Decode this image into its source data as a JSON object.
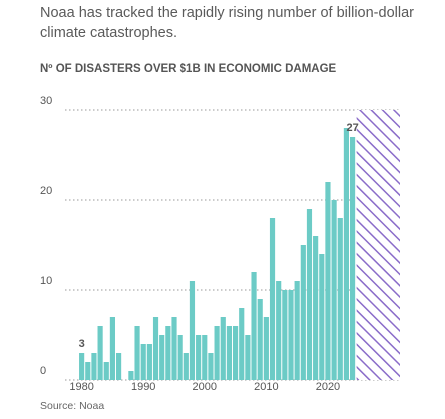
{
  "chart_data": {
    "type": "bar",
    "title_lines": [
      "Noaa has tracked the rapidly rising number of billion-dollar",
      "climate catastrophes."
    ],
    "subtitle": "Nº OF DISASTERS OVER $1B IN ECONOMIC DAMAGE",
    "source": "Source: Noaa",
    "x": [
      1980,
      1981,
      1982,
      1983,
      1984,
      1985,
      1986,
      1987,
      1988,
      1989,
      1990,
      1991,
      1992,
      1993,
      1994,
      1995,
      1996,
      1997,
      1998,
      1999,
      2000,
      2001,
      2002,
      2003,
      2004,
      2005,
      2006,
      2007,
      2008,
      2009,
      2010,
      2011,
      2012,
      2013,
      2014,
      2015,
      2016,
      2017,
      2018,
      2019,
      2020,
      2021,
      2022,
      2023,
      2024
    ],
    "values": [
      3,
      2,
      3,
      6,
      2,
      7,
      3,
      0,
      1,
      6,
      4,
      4,
      7,
      5,
      6,
      7,
      5,
      3,
      11,
      5,
      5,
      3,
      6,
      7,
      6,
      6,
      8,
      5,
      12,
      9,
      7,
      18,
      11,
      10,
      10,
      11,
      15,
      19,
      16,
      14,
      22,
      20,
      18,
      28,
      27
    ],
    "value_labels": [
      "3",
      null,
      null,
      null,
      null,
      null,
      null,
      null,
      null,
      null,
      null,
      null,
      null,
      null,
      null,
      null,
      null,
      null,
      null,
      null,
      null,
      null,
      null,
      null,
      null,
      null,
      null,
      null,
      null,
      null,
      null,
      null,
      null,
      null,
      null,
      null,
      null,
      null,
      null,
      null,
      null,
      null,
      null,
      null,
      "27"
    ],
    "color": "#6ccbc6",
    "hatch_color": "#8a6cc9",
    "xlim": [
      1977.3,
      2031.7
    ],
    "xticks": [
      1980,
      1990,
      2000,
      2010,
      2020
    ],
    "ylim": [
      0,
      30
    ],
    "yticks": [
      0,
      10,
      20,
      30
    ],
    "grid": true
  }
}
